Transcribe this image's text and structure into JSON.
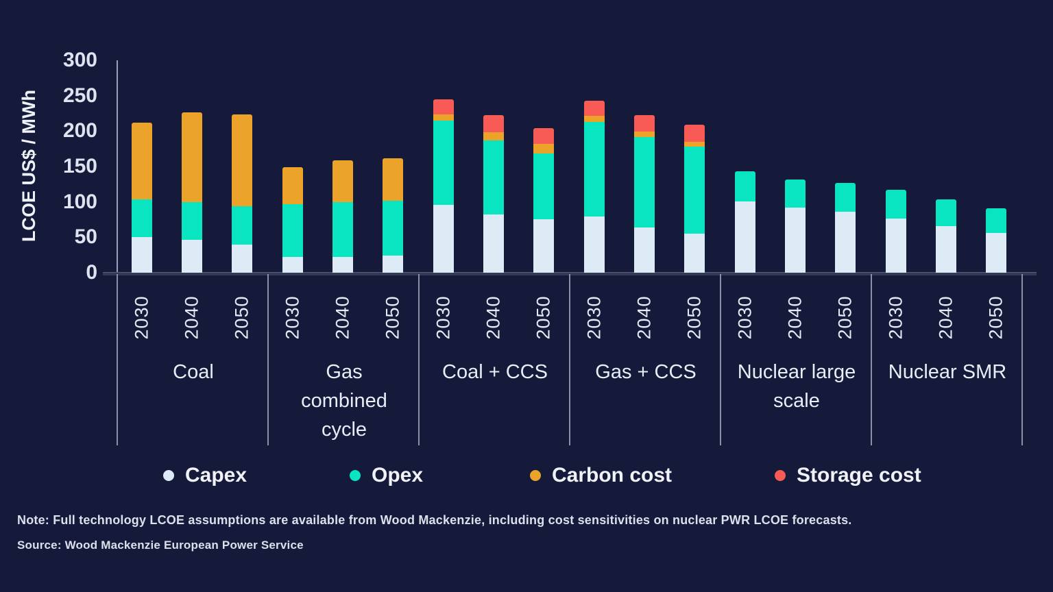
{
  "chart_data": {
    "type": "bar",
    "stacked": true,
    "title": "",
    "ylabel": "LCOE US$ / MWh",
    "ylim": [
      0,
      300
    ],
    "yticks": [
      0,
      50,
      100,
      150,
      200,
      250,
      300
    ],
    "grid": false,
    "legend_position": "bottom",
    "years": [
      "2030",
      "2040",
      "2050"
    ],
    "groups": [
      {
        "label": "Coal",
        "label_lines": [
          "Coal"
        ]
      },
      {
        "label": "Gas combined cycle",
        "label_lines": [
          "Gas",
          "combined",
          "cycle"
        ]
      },
      {
        "label": "Coal + CCS",
        "label_lines": [
          "Coal + CCS"
        ]
      },
      {
        "label": "Gas + CCS",
        "label_lines": [
          "Gas + CCS"
        ]
      },
      {
        "label": "Nuclear large scale",
        "label_lines": [
          "Nuclear large",
          "scale"
        ]
      },
      {
        "label": "Nuclear SMR",
        "label_lines": [
          "Nuclear SMR"
        ]
      }
    ],
    "series": [
      {
        "name": "Capex",
        "color": "#dcebf5",
        "values": [
          50,
          46,
          40,
          22,
          22,
          24,
          96,
          82,
          75,
          79,
          64,
          55,
          101,
          92,
          86,
          76,
          66,
          56
        ]
      },
      {
        "name": "Opex",
        "color": "#0ae5c1",
        "values": [
          54,
          54,
          54,
          75,
          78,
          78,
          119,
          105,
          93,
          134,
          128,
          123,
          42,
          40,
          41,
          41,
          38,
          35
        ]
      },
      {
        "name": "Carbon cost",
        "color": "#eba32a",
        "values": [
          108,
          126,
          130,
          52,
          59,
          60,
          9,
          11,
          14,
          9,
          7,
          7,
          0,
          0,
          0,
          0,
          0,
          0
        ]
      },
      {
        "name": "Storage cost",
        "color": "#f85b55",
        "values": [
          0,
          0,
          0,
          0,
          0,
          0,
          21,
          25,
          22,
          21,
          24,
          24,
          0,
          0,
          0,
          0,
          0,
          0
        ]
      }
    ]
  },
  "notes": {
    "note": "Note: Full technology LCOE assumptions are available from Wood Mackenzie, including cost sensitivities on nuclear PWR LCOE forecasts.",
    "source": "Source: Wood Mackenzie European Power Service"
  },
  "colors": {
    "background": "#151a3a",
    "axis_line": "#9ca2b6",
    "baseline": "#343a54",
    "text": "#e8ecf5"
  }
}
